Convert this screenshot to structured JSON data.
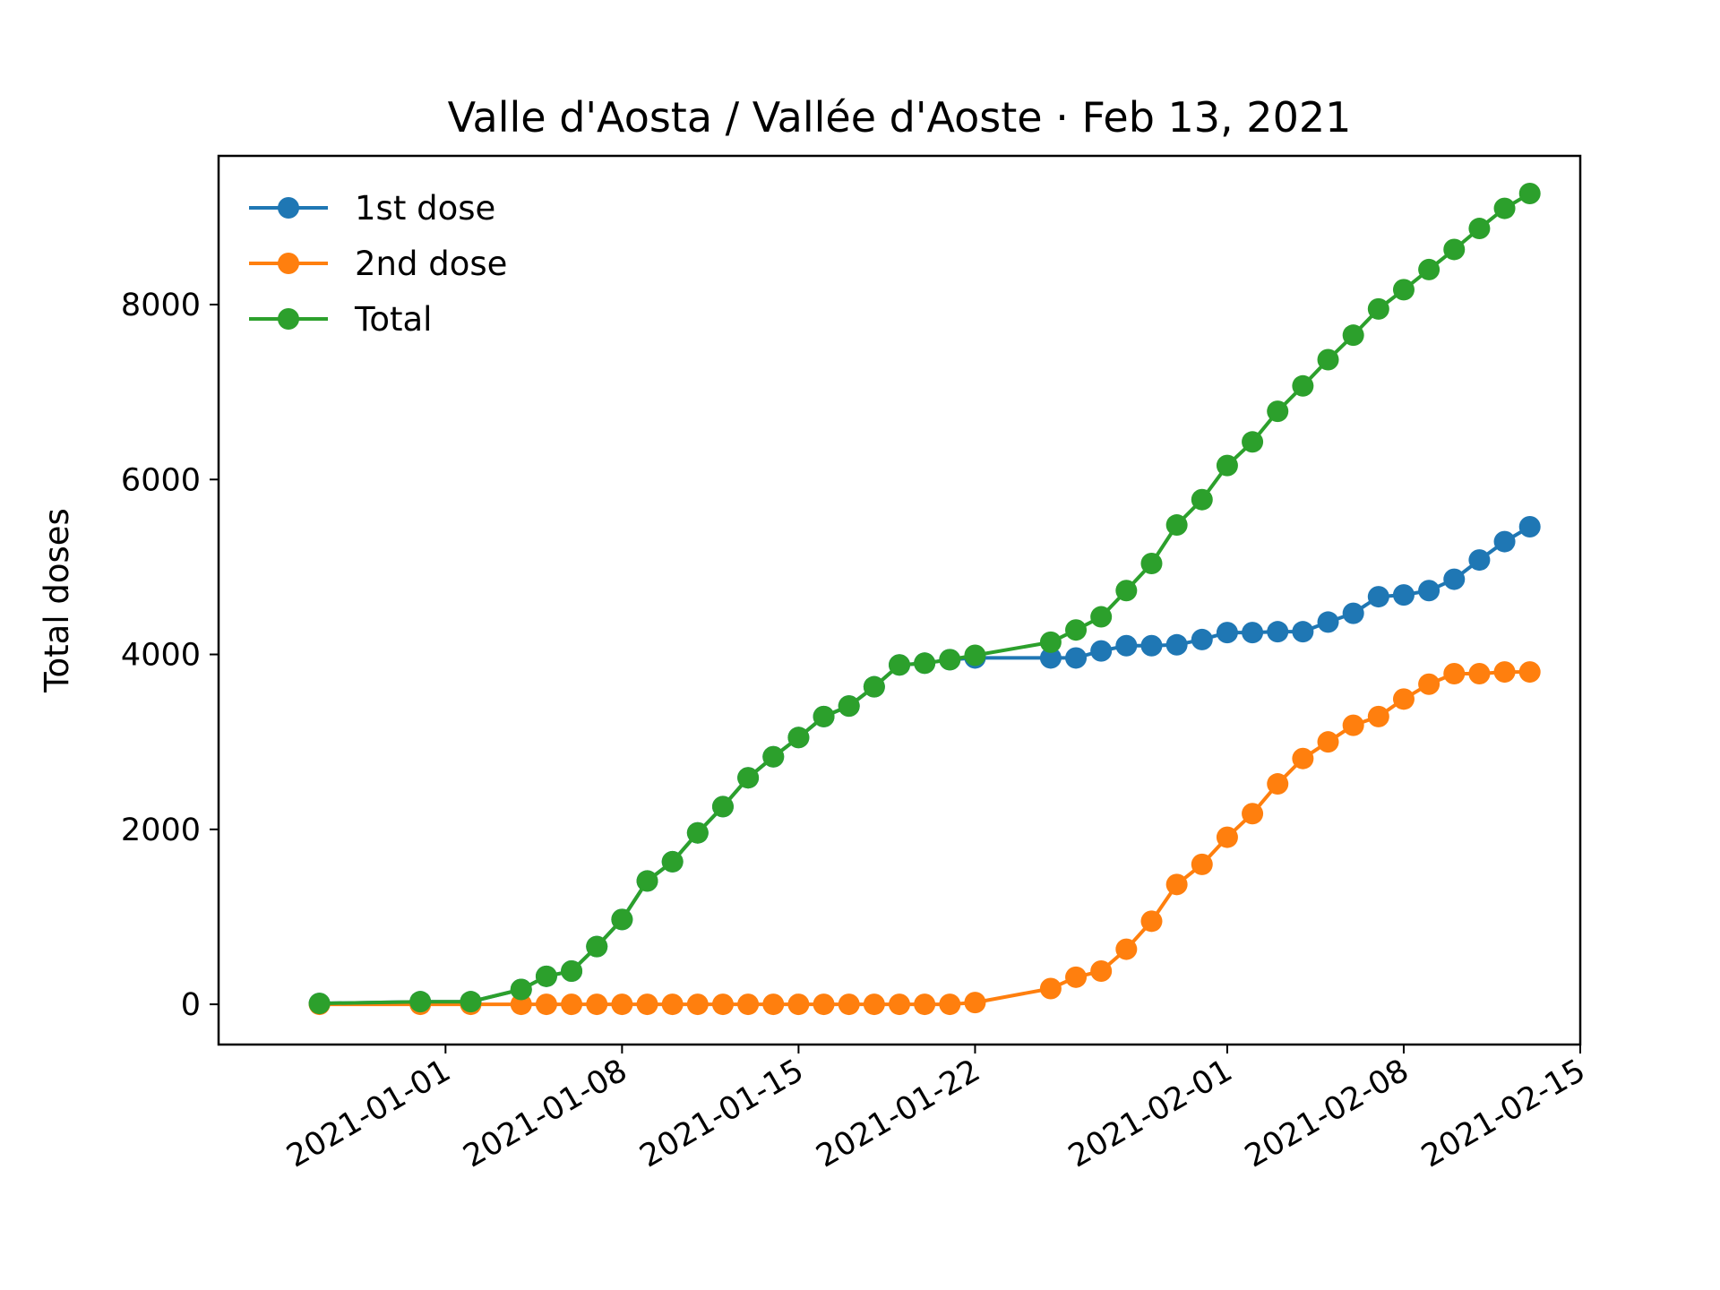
{
  "chart_data": {
    "type": "line",
    "title": "Valle d'Aosta / Vallée d'Aoste · Feb 13, 2021",
    "xlabel": "",
    "ylabel": "Total doses",
    "x_type": "date",
    "xlim": [
      "2020-12-23",
      "2021-02-15"
    ],
    "ylim": [
      -460,
      9700
    ],
    "x_ticks": [
      "2021-01-01",
      "2021-01-08",
      "2021-01-15",
      "2021-01-22",
      "2021-02-01",
      "2021-02-08",
      "2021-02-15"
    ],
    "y_ticks": [
      0,
      2000,
      4000,
      6000,
      8000
    ],
    "grid": false,
    "legend_position": "upper left",
    "series": [
      {
        "name": "1st dose",
        "color": "#1f77b4",
        "x": [
          "2020-12-27",
          "2020-12-31",
          "2021-01-02",
          "2021-01-04",
          "2021-01-05",
          "2021-01-06",
          "2021-01-07",
          "2021-01-08",
          "2021-01-09",
          "2021-01-10",
          "2021-01-11",
          "2021-01-12",
          "2021-01-13",
          "2021-01-14",
          "2021-01-15",
          "2021-01-16",
          "2021-01-17",
          "2021-01-18",
          "2021-01-19",
          "2021-01-20",
          "2021-01-21",
          "2021-01-22",
          "2021-01-25",
          "2021-01-26",
          "2021-01-27",
          "2021-01-28",
          "2021-01-29",
          "2021-01-30",
          "2021-01-31",
          "2021-02-01",
          "2021-02-02",
          "2021-02-03",
          "2021-02-04",
          "2021-02-05",
          "2021-02-06",
          "2021-02-07",
          "2021-02-08",
          "2021-02-09",
          "2021-02-10",
          "2021-02-11",
          "2021-02-12",
          "2021-02-13"
        ],
        "y": [
          10,
          30,
          30,
          170,
          320,
          380,
          660,
          970,
          1410,
          1630,
          1960,
          2260,
          2590,
          2830,
          3050,
          3290,
          3410,
          3630,
          3880,
          3900,
          3940,
          3960,
          3960,
          3960,
          4040,
          4100,
          4100,
          4110,
          4170,
          4250,
          4250,
          4260,
          4260,
          4370,
          4470,
          4660,
          4680,
          4730,
          4860,
          5080,
          5290,
          5460
        ]
      },
      {
        "name": "2nd dose",
        "color": "#ff7f0e",
        "x": [
          "2020-12-27",
          "2020-12-31",
          "2021-01-02",
          "2021-01-04",
          "2021-01-05",
          "2021-01-06",
          "2021-01-07",
          "2021-01-08",
          "2021-01-09",
          "2021-01-10",
          "2021-01-11",
          "2021-01-12",
          "2021-01-13",
          "2021-01-14",
          "2021-01-15",
          "2021-01-16",
          "2021-01-17",
          "2021-01-18",
          "2021-01-19",
          "2021-01-20",
          "2021-01-21",
          "2021-01-22",
          "2021-01-25",
          "2021-01-26",
          "2021-01-27",
          "2021-01-28",
          "2021-01-29",
          "2021-01-30",
          "2021-01-31",
          "2021-02-01",
          "2021-02-02",
          "2021-02-03",
          "2021-02-04",
          "2021-02-05",
          "2021-02-06",
          "2021-02-07",
          "2021-02-08",
          "2021-02-09",
          "2021-02-10",
          "2021-02-11",
          "2021-02-12",
          "2021-02-13"
        ],
        "y": [
          0,
          0,
          0,
          0,
          0,
          0,
          0,
          0,
          0,
          0,
          0,
          0,
          0,
          0,
          0,
          0,
          0,
          0,
          0,
          0,
          0,
          20,
          180,
          310,
          380,
          630,
          950,
          1370,
          1600,
          1910,
          2180,
          2520,
          2810,
          3000,
          3190,
          3290,
          3490,
          3660,
          3780,
          3780,
          3800,
          3800
        ]
      },
      {
        "name": "Total",
        "color": "#2ca02c",
        "x": [
          "2020-12-27",
          "2020-12-31",
          "2021-01-02",
          "2021-01-04",
          "2021-01-05",
          "2021-01-06",
          "2021-01-07",
          "2021-01-08",
          "2021-01-09",
          "2021-01-10",
          "2021-01-11",
          "2021-01-12",
          "2021-01-13",
          "2021-01-14",
          "2021-01-15",
          "2021-01-16",
          "2021-01-17",
          "2021-01-18",
          "2021-01-19",
          "2021-01-20",
          "2021-01-21",
          "2021-01-22",
          "2021-01-25",
          "2021-01-26",
          "2021-01-27",
          "2021-01-28",
          "2021-01-29",
          "2021-01-30",
          "2021-01-31",
          "2021-02-01",
          "2021-02-02",
          "2021-02-03",
          "2021-02-04",
          "2021-02-05",
          "2021-02-06",
          "2021-02-07",
          "2021-02-08",
          "2021-02-09",
          "2021-02-10",
          "2021-02-11",
          "2021-02-12",
          "2021-02-13"
        ],
        "y": [
          10,
          30,
          30,
          170,
          320,
          380,
          660,
          970,
          1410,
          1630,
          1960,
          2260,
          2590,
          2830,
          3050,
          3290,
          3410,
          3630,
          3880,
          3900,
          3940,
          3990,
          4140,
          4280,
          4430,
          4730,
          5040,
          5480,
          5770,
          6160,
          6430,
          6780,
          7070,
          7370,
          7650,
          7950,
          8170,
          8400,
          8630,
          8870,
          9100,
          9270
        ]
      }
    ]
  }
}
